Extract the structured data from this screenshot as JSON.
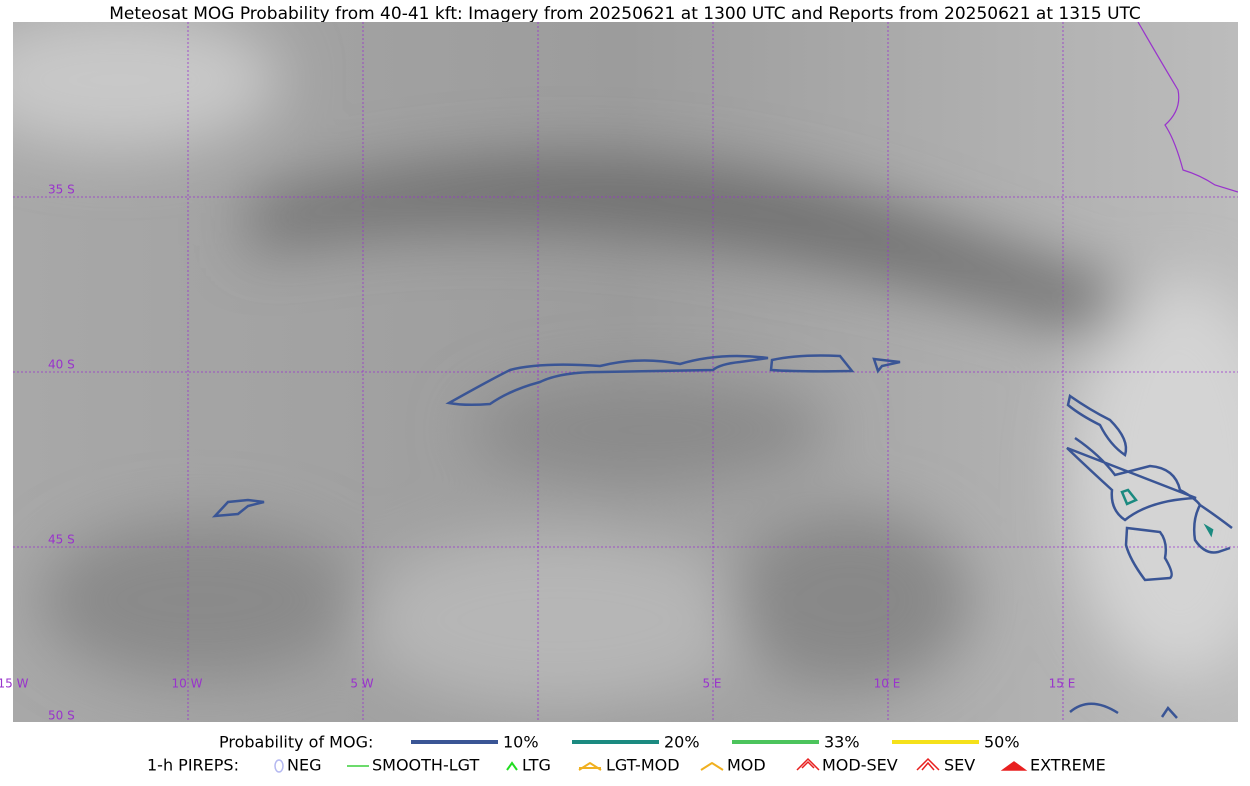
{
  "title": "Meteosat MOG Probability from 40-41 kft: Imagery from 20250621 at 1300 UTC and Reports from 20250621 at 1315 UTC",
  "map": {
    "lat_labels": [
      "35 S",
      "40 S",
      "45 S",
      "50 S"
    ],
    "lon_labels": [
      "15 W",
      "10 W",
      "5 W",
      "5 E",
      "10 E",
      "15 E"
    ]
  },
  "legend": {
    "title": "Probability of MOG:",
    "levels": [
      {
        "label": "10%",
        "color": "#3a5595"
      },
      {
        "label": "20%",
        "color": "#1b8a80"
      },
      {
        "label": "33%",
        "color": "#4cc45c"
      },
      {
        "label": "50%",
        "color": "#f5e11a"
      }
    ],
    "pireps_title": "1-h PIREPS:",
    "pireps": [
      {
        "label": "NEG",
        "color": "#b4b8f0"
      },
      {
        "label": "SMOOTH-LGT",
        "color": "#3ccf3c"
      },
      {
        "label": "LTG",
        "color": "#22dd22"
      },
      {
        "label": "LGT-MOD",
        "color": "#f0b020"
      },
      {
        "label": "MOD",
        "color": "#f0b020"
      },
      {
        "label": "MOD-SEV",
        "color": "#e82020"
      },
      {
        "label": "SEV",
        "color": "#e82020"
      },
      {
        "label": "EXTREME",
        "color": "#e82020"
      }
    ]
  }
}
